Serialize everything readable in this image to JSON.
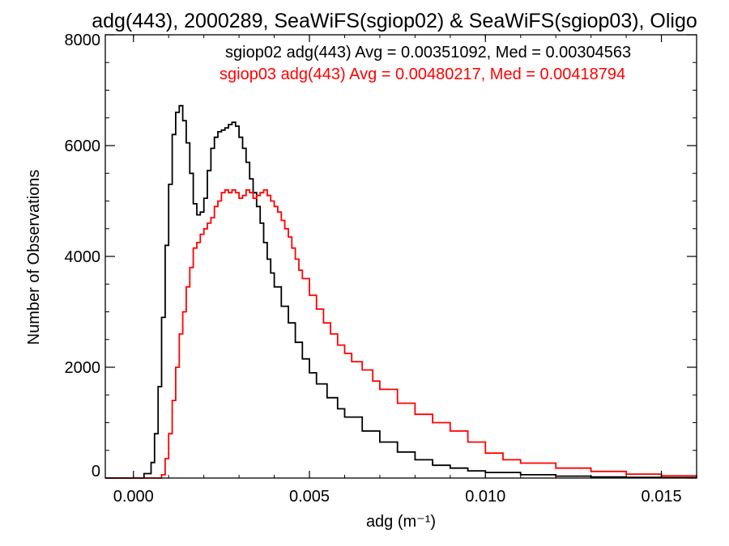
{
  "chart_data": {
    "type": "line",
    "title": "adg(443), 2000289, SeaWiFS(sgiop02) & SeaWiFS(sgiop03), Oligo",
    "xlabel": "adg (m⁻¹)",
    "ylabel": "Number of Observations",
    "xlim": [
      -0.0008,
      0.016
    ],
    "ylim": [
      0,
      8000
    ],
    "xticks": [
      0.0,
      0.005,
      0.01,
      0.015
    ],
    "xtick_labels": [
      "0.000",
      "0.005",
      "0.010",
      "0.015"
    ],
    "yticks": [
      0,
      2000,
      4000,
      6000,
      8000
    ],
    "ytick_labels": [
      "0",
      "2000",
      "4000",
      "6000",
      "8000"
    ],
    "grid": false,
    "step": true,
    "legend": [
      {
        "text": "sgiop02 adg(443) Avg = 0.00351092, Med = 0.00304563",
        "color": "#000000"
      },
      {
        "text": "sgiop03 adg(443) Avg = 0.00480217, Med = 0.00418794",
        "color": "#ff0000"
      }
    ],
    "series": [
      {
        "color": "#000000",
        "x": [
          -0.0008,
          0.0,
          0.0003,
          0.0005,
          0.0006,
          0.0007,
          0.0008,
          0.0009,
          0.001,
          0.0011,
          0.0012,
          0.0013,
          0.0014,
          0.0015,
          0.0016,
          0.0017,
          0.0018,
          0.0019,
          0.002,
          0.0021,
          0.0022,
          0.0023,
          0.0024,
          0.0025,
          0.0026,
          0.0027,
          0.0028,
          0.0029,
          0.003,
          0.0031,
          0.0032,
          0.0033,
          0.0034,
          0.0035,
          0.0036,
          0.0037,
          0.0038,
          0.0039,
          0.004,
          0.0042,
          0.0044,
          0.0046,
          0.0048,
          0.005,
          0.0052,
          0.0055,
          0.0058,
          0.006,
          0.0065,
          0.007,
          0.0075,
          0.008,
          0.0085,
          0.009,
          0.0095,
          0.01,
          0.011,
          0.012,
          0.013,
          0.014,
          0.015,
          0.016
        ],
        "y": [
          0,
          0,
          80,
          280,
          800,
          1650,
          2900,
          4200,
          5300,
          6200,
          6600,
          6720,
          6450,
          6050,
          5500,
          4950,
          4750,
          4800,
          5050,
          5550,
          5950,
          6150,
          6250,
          6280,
          6320,
          6380,
          6420,
          6350,
          6150,
          5950,
          5700,
          5400,
          5150,
          4900,
          4600,
          4250,
          3950,
          3700,
          3450,
          3100,
          2800,
          2450,
          2150,
          1900,
          1700,
          1450,
          1250,
          1100,
          850,
          650,
          470,
          330,
          230,
          180,
          130,
          100,
          60,
          35,
          20,
          12,
          8,
          5
        ]
      },
      {
        "color": "#ff0000",
        "x": [
          -0.0008,
          0.0,
          0.0005,
          0.0008,
          0.0009,
          0.001,
          0.0011,
          0.0012,
          0.0013,
          0.0014,
          0.0015,
          0.0016,
          0.0017,
          0.0018,
          0.0019,
          0.002,
          0.0021,
          0.0022,
          0.0023,
          0.0024,
          0.0025,
          0.0026,
          0.0027,
          0.0028,
          0.0029,
          0.003,
          0.0031,
          0.0032,
          0.0033,
          0.0034,
          0.0035,
          0.0036,
          0.0037,
          0.0038,
          0.0039,
          0.004,
          0.0041,
          0.0042,
          0.0043,
          0.0044,
          0.0045,
          0.0046,
          0.0047,
          0.0048,
          0.005,
          0.0052,
          0.0054,
          0.0056,
          0.0058,
          0.006,
          0.0062,
          0.0065,
          0.0068,
          0.007,
          0.0075,
          0.008,
          0.0085,
          0.009,
          0.0095,
          0.01,
          0.0105,
          0.011,
          0.012,
          0.013,
          0.014,
          0.015,
          0.016
        ],
        "y": [
          0,
          0,
          0,
          60,
          350,
          800,
          1400,
          2000,
          2600,
          3000,
          3450,
          3800,
          4150,
          4250,
          4400,
          4500,
          4600,
          4700,
          4900,
          5000,
          5150,
          5200,
          5150,
          5200,
          5150,
          5050,
          5100,
          5200,
          5150,
          5050,
          5100,
          5150,
          5200,
          5100,
          5000,
          4900,
          4800,
          4650,
          4500,
          4350,
          4150,
          3950,
          3750,
          3600,
          3300,
          3050,
          2800,
          2600,
          2400,
          2250,
          2100,
          1950,
          1750,
          1600,
          1350,
          1150,
          1000,
          850,
          650,
          450,
          330,
          270,
          180,
          120,
          70,
          40,
          20
        ]
      }
    ]
  }
}
